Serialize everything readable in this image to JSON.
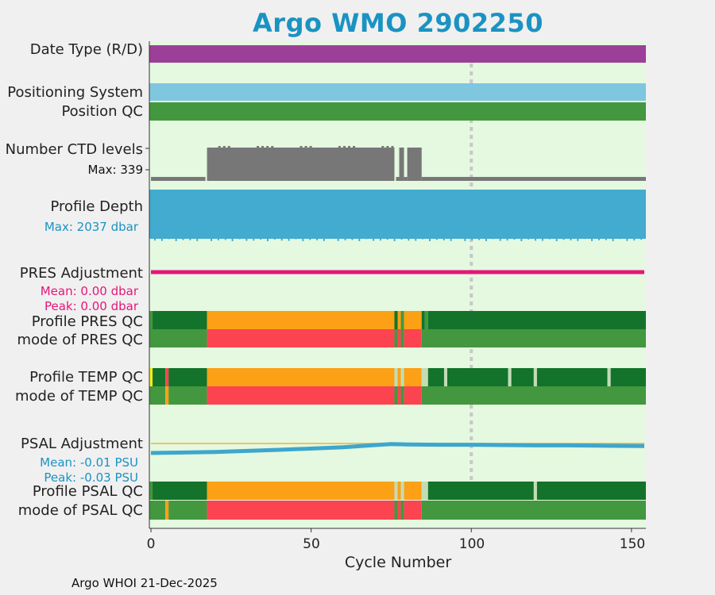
{
  "title": "Argo WMO 2902250",
  "footer": "Argo WHOI 21-Dec-2025",
  "labels": {
    "date_type": "Date Type (R/D)",
    "positioning_system": "Positioning System",
    "position_qc": "Position QC",
    "ctd_levels": "Number CTD levels",
    "ctd_max": "Max: 339",
    "profile_depth": "Profile Depth",
    "depth_max": "Max: 2037 dbar",
    "pres_adj": "PRES Adjustment",
    "pres_mean": "Mean: 0.00 dbar",
    "pres_peak": "Peak: 0.00 dbar",
    "profile_pres_qc": "Profile PRES QC",
    "mode_pres_qc": "mode of PRES QC",
    "profile_temp_qc": "Profile TEMP QC",
    "mode_temp_qc": "mode of TEMP QC",
    "psal_adj": "PSAL Adjustment",
    "psal_mean": "Mean: -0.01 PSU",
    "psal_peak": "Peak: -0.03 PSU",
    "profile_psal_qc": "Profile PSAL QC",
    "mode_psal_qc": "mode of PSAL QC"
  },
  "colors": {
    "title": "#1a93c2",
    "background": "#e4f9e0",
    "date_type": "#9b3f98",
    "positioning": "#7fc6df",
    "good_light": "#43973f",
    "good_dark": "#13732a",
    "orange": "#fca015",
    "red": "#fc4451",
    "gray": "#777777",
    "depth": "#42abcf",
    "pres_adj": "#e6157a",
    "psal_adj": "#3ea6cc",
    "psal_ref": "#f0b040",
    "dotted": "#c8c8c8"
  },
  "chart_data": {
    "type": "timeline",
    "xlabel": "Cycle Number",
    "xlim": [
      -0.5,
      154.5
    ],
    "xticks": [
      "0",
      "50",
      "100",
      "150"
    ],
    "xtick_values": [
      0,
      50,
      100,
      150
    ],
    "marker_cycle": 100,
    "ctd_levels": {
      "max": 339,
      "segments": [
        [
          0,
          17,
          40
        ],
        [
          17.5,
          76,
          339
        ],
        [
          76.5,
          77.5,
          40
        ],
        [
          77.5,
          79,
          339
        ],
        [
          79,
          80,
          40
        ],
        [
          80,
          84.5,
          339
        ],
        [
          84.5,
          154.5,
          40
        ]
      ]
    },
    "pres_adjustment": {
      "mean": 0.0,
      "peak": 0.0
    },
    "psal_adjustment": {
      "mean": -0.01,
      "peak": -0.03,
      "x": [
        0,
        20,
        40,
        60,
        70,
        75,
        80,
        90,
        100,
        110,
        120,
        130,
        140,
        154
      ],
      "y": [
        -0.03,
        -0.027,
        -0.02,
        -0.012,
        -0.005,
        -0.002,
        -0.003,
        -0.004,
        -0.004,
        -0.005,
        -0.006,
        -0.006,
        -0.007,
        -0.008
      ]
    },
    "rows": {
      "profile_pres_qc": [
        [
          -0.5,
          0.5,
          "good_light"
        ],
        [
          0.5,
          17.5,
          "good_dark"
        ],
        [
          17.5,
          76,
          "orange"
        ],
        [
          76,
          77,
          "good_dark"
        ],
        [
          77,
          78,
          "orange"
        ],
        [
          78,
          79,
          "good_light"
        ],
        [
          79,
          84.5,
          "orange"
        ],
        [
          84.5,
          85.5,
          "good_dark"
        ],
        [
          85.5,
          86.5,
          "good_light"
        ],
        [
          86.5,
          154.5,
          "good_dark"
        ]
      ],
      "mode_pres_qc": [
        [
          -0.5,
          17.5,
          "good_light"
        ],
        [
          17.5,
          76,
          "red"
        ],
        [
          76,
          77,
          "good_light"
        ],
        [
          77,
          78,
          "red"
        ],
        [
          78,
          79,
          "good_light"
        ],
        [
          79,
          84.5,
          "red"
        ],
        [
          84.5,
          154.5,
          "good_light"
        ]
      ],
      "profile_temp_qc": [
        [
          -0.5,
          0.5,
          "yellow"
        ],
        [
          0.5,
          4.5,
          "good_dark"
        ],
        [
          4.5,
          5.5,
          "red"
        ],
        [
          5.5,
          17.5,
          "good_dark"
        ],
        [
          17.5,
          76,
          "orange"
        ],
        [
          76,
          77,
          "light"
        ],
        [
          77,
          78,
          "orange"
        ],
        [
          78,
          79,
          "light"
        ],
        [
          79,
          84.5,
          "orange"
        ],
        [
          84.5,
          86.5,
          "light"
        ],
        [
          86.5,
          91.5,
          "good_dark"
        ],
        [
          91.5,
          92.5,
          "light"
        ],
        [
          92.5,
          111.5,
          "good_dark"
        ],
        [
          111.5,
          112.5,
          "light"
        ],
        [
          112.5,
          119.5,
          "good_dark"
        ],
        [
          119.5,
          120.5,
          "light"
        ],
        [
          120.5,
          142.5,
          "good_dark"
        ],
        [
          142.5,
          143.5,
          "light"
        ],
        [
          143.5,
          154.5,
          "good_dark"
        ]
      ],
      "mode_temp_qc": [
        [
          -0.5,
          4.5,
          "good_light"
        ],
        [
          4.5,
          5.5,
          "orange"
        ],
        [
          5.5,
          17.5,
          "good_light"
        ],
        [
          17.5,
          76,
          "red"
        ],
        [
          76,
          77,
          "good_light"
        ],
        [
          77,
          78,
          "red"
        ],
        [
          78,
          79,
          "good_light"
        ],
        [
          79,
          84.5,
          "red"
        ],
        [
          84.5,
          154.5,
          "good_light"
        ]
      ],
      "profile_psal_qc": [
        [
          -0.5,
          0.5,
          "good_light"
        ],
        [
          0.5,
          17.5,
          "good_dark"
        ],
        [
          17.5,
          76,
          "orange"
        ],
        [
          76,
          77,
          "light"
        ],
        [
          77,
          78,
          "orange"
        ],
        [
          78,
          79,
          "light"
        ],
        [
          79,
          84.5,
          "orange"
        ],
        [
          84.5,
          86.5,
          "light"
        ],
        [
          86.5,
          119.5,
          "good_dark"
        ],
        [
          119.5,
          120.5,
          "light"
        ],
        [
          120.5,
          154.5,
          "good_dark"
        ]
      ],
      "mode_psal_qc": [
        [
          -0.5,
          4.5,
          "good_light"
        ],
        [
          4.5,
          5.5,
          "orange"
        ],
        [
          5.5,
          17.5,
          "good_light"
        ],
        [
          17.5,
          76,
          "red"
        ],
        [
          76,
          77,
          "good_light"
        ],
        [
          77,
          78,
          "red"
        ],
        [
          78,
          79,
          "good_light"
        ],
        [
          79,
          84.5,
          "red"
        ],
        [
          84.5,
          154.5,
          "good_light"
        ]
      ]
    }
  }
}
